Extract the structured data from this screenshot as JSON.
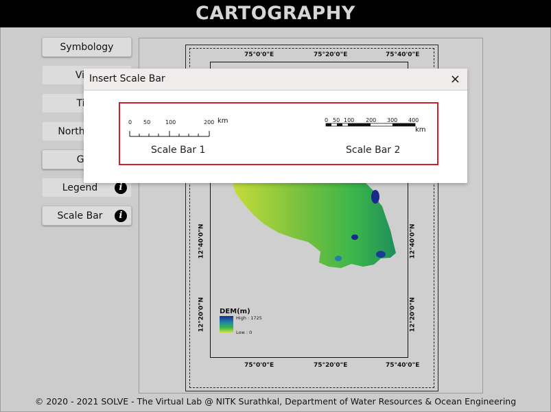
{
  "header": {
    "title": "CARTOGRAPHY"
  },
  "sidebar": {
    "items": [
      {
        "label": "Symbology",
        "info": false
      },
      {
        "label": "View",
        "info": false
      },
      {
        "label": "Title",
        "info": false
      },
      {
        "label": "North Arrow",
        "info": false
      },
      {
        "label": "Grid",
        "info": false
      },
      {
        "label": "Legend",
        "info": true
      },
      {
        "label": "Scale Bar",
        "info": true
      }
    ],
    "info_glyph": "i"
  },
  "map": {
    "top_lon": [
      "75°0'0\"E",
      "75°20'0\"E",
      "75°40'0\"E"
    ],
    "bottom_lon": [
      "75°0'0\"E",
      "75°20'0\"E",
      "75°40'0\"E"
    ],
    "left_lat": [
      "12°40'0\"N",
      "12°20'0\"N"
    ],
    "right_lat": [
      "12°40'0\"N",
      "12°20'0\"N"
    ],
    "legend": {
      "title": "DEM(m)",
      "high": "High : 1725",
      "low": "Low : 0"
    },
    "colors": {
      "low": "#c7dd3a",
      "mid": "#3ab54a",
      "high": "#1a2a8a"
    }
  },
  "dialog": {
    "title": "Insert Scale Bar",
    "close_glyph": "×",
    "scale_bar_1": {
      "label": "Scale Bar 1",
      "ticks": [
        "0",
        "50",
        "100",
        "200"
      ],
      "unit": "km"
    },
    "scale_bar_2": {
      "label": "Scale Bar 2",
      "ticks": [
        "0",
        "50",
        "100",
        "200",
        "300",
        "400"
      ],
      "unit": "km"
    },
    "highlight_color": "#d01f2c"
  },
  "footer": {
    "text": "© 2020 - 2021 SOLVE - The Virtual Lab @ NITK Surathkal, Department of Water Resources & Ocean Engineering"
  }
}
